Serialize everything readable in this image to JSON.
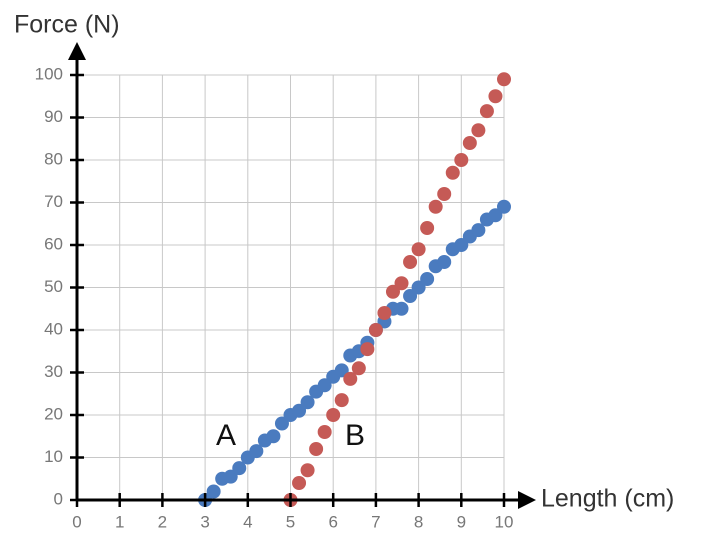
{
  "chart_data": {
    "type": "scatter",
    "y_label": "Force (N)",
    "x_label": "Length (cm)",
    "annotations": [
      "A",
      "B"
    ],
    "xlim": [
      0,
      10
    ],
    "ylim": [
      0,
      100
    ],
    "xticks": [
      0,
      1,
      2,
      3,
      4,
      5,
      6,
      7,
      8,
      9,
      10
    ],
    "yticks": [
      0,
      10,
      20,
      30,
      40,
      50,
      60,
      70,
      80,
      90,
      100
    ],
    "grid": true,
    "series": [
      {
        "color": "#4a7bbf",
        "x": [
          3.0,
          3.2,
          3.4,
          3.6,
          3.8,
          4.0,
          4.2,
          4.4,
          4.6,
          4.8,
          5.0,
          5.2,
          5.4,
          5.6,
          5.8,
          6.0,
          6.2,
          6.4,
          6.6,
          6.8,
          7.0,
          7.2,
          7.4,
          7.6,
          7.8,
          8.0,
          8.2,
          8.4,
          8.6,
          8.8,
          9.0,
          9.2,
          9.4,
          9.6,
          9.8,
          10.0
        ],
        "values": [
          0,
          2,
          5,
          5.5,
          7.5,
          10,
          11.5,
          14,
          15,
          18,
          20,
          21,
          23,
          25.5,
          27,
          29,
          30.5,
          34,
          35,
          37,
          40,
          42,
          45,
          45,
          48,
          50,
          52,
          55,
          56,
          59,
          60,
          62,
          63.5,
          66,
          67,
          69
        ]
      },
      {
        "color": "#c55a56",
        "x": [
          5.0,
          5.2,
          5.4,
          5.6,
          5.8,
          6.0,
          6.2,
          6.4,
          6.6,
          6.8,
          7.0,
          7.2,
          7.4,
          7.6,
          7.8,
          8.0,
          8.2,
          8.4,
          8.6,
          8.8,
          9.0,
          9.2,
          9.4,
          9.6,
          9.8,
          10.0
        ],
        "values": [
          0,
          4,
          7,
          12,
          16,
          20,
          23.5,
          28.5,
          31,
          35.5,
          40,
          44,
          49,
          51,
          56,
          59,
          64,
          69,
          72,
          77,
          80,
          84,
          87,
          91.5,
          95,
          99
        ]
      }
    ]
  }
}
